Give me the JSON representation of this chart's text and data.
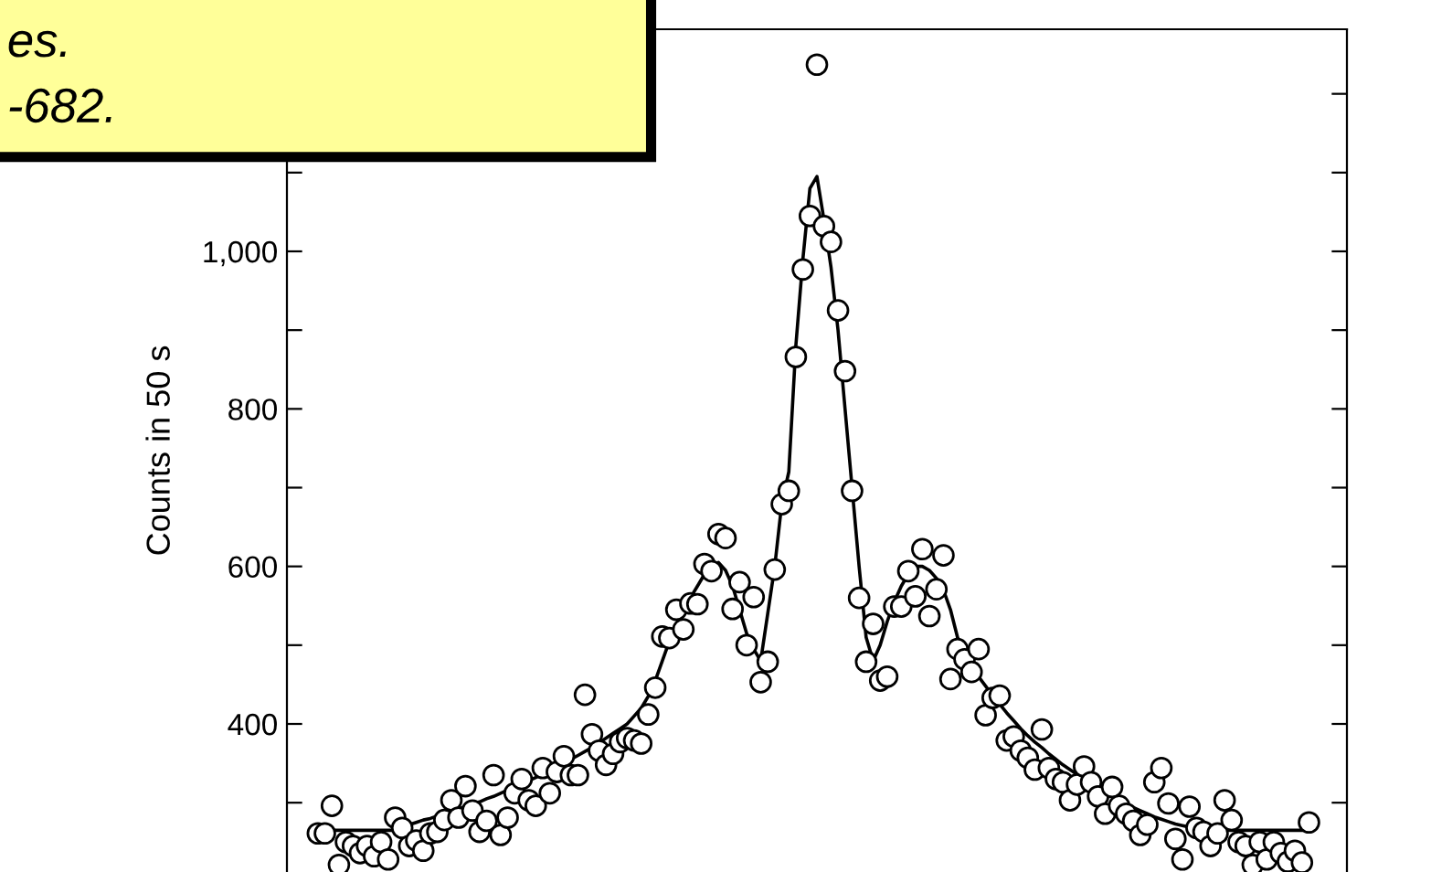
{
  "chart_data": {
    "type": "scatter",
    "ylabel": "Counts in 50 s",
    "tick_labels": "y",
    "annotations": [
      "es.",
      "-682."
    ],
    "categories": [
      null,
      null,
      null,
      null,
      null,
      null,
      null,
      null,
      null,
      null,
      null,
      null,
      null,
      null,
      null,
      null,
      null,
      null,
      null,
      null,
      null,
      null,
      null,
      null,
      null,
      null,
      null,
      null,
      null,
      null,
      null,
      null,
      null,
      null,
      null,
      null,
      null,
      null,
      null,
      null,
      null,
      null,
      null,
      null,
      null,
      null,
      null,
      null,
      null,
      null,
      null,
      null,
      null,
      null,
      null,
      null,
      null,
      null,
      null,
      null,
      null,
      null,
      null,
      null,
      null,
      null,
      null,
      null,
      null,
      null,
      null,
      null,
      null,
      null,
      null,
      null,
      null,
      null,
      null,
      null,
      null,
      null,
      null,
      null,
      null,
      null,
      null,
      null,
      null,
      null,
      null,
      null,
      null,
      null,
      null,
      null,
      null,
      null,
      null,
      null,
      null,
      null,
      null,
      null,
      null,
      null,
      null,
      null,
      null,
      null,
      null,
      null,
      null,
      null,
      null,
      null,
      null,
      null,
      null,
      null,
      null,
      null,
      null,
      null,
      null,
      null,
      null,
      null,
      null,
      null,
      null,
      null,
      null,
      null,
      null,
      null,
      null,
      null,
      null,
      null,
      null,
      null
    ],
    "ylim": [
      212,
      1282
    ],
    "yticks": [
      {
        "value": 300,
        "label": null
      },
      400,
      {
        "value": 500,
        "label": null
      },
      600,
      {
        "value": 700,
        "label": null
      },
      800,
      {
        "value": 900,
        "label": null
      },
      {
        "value": 1000,
        "label": "1,000"
      },
      {
        "value": 1100,
        "label": null
      },
      {
        "value": 1200,
        "label": null
      }
    ],
    "series": [
      {
        "marker": "circle",
        "color": "#000000",
        "values": [
          261,
          261,
          296,
          221,
          250,
          245,
          236,
          245,
          232,
          250,
          228,
          281,
          268,
          245,
          252,
          239,
          261,
          263,
          278,
          303,
          281,
          321,
          290,
          263,
          277,
          335,
          259,
          281,
          312,
          330,
          303,
          296,
          344,
          312,
          339,
          359,
          335,
          335,
          437,
          387,
          366,
          348,
          362,
          377,
          382,
          379,
          375,
          412,
          446,
          511,
          509,
          545,
          520,
          553,
          552,
          603,
          594,
          641,
          636,
          546,
          580,
          500,
          561,
          453,
          479,
          596,
          679,
          696,
          866,
          977,
          1045,
          1237,
          1032,
          1012,
          925,
          848,
          696,
          560,
          479,
          527,
          455,
          460,
          549,
          549,
          594,
          562,
          622,
          537,
          571,
          614,
          457,
          495,
          482,
          466,
          495,
          411,
          433,
          436,
          379,
          384,
          366,
          357,
          342,
          393,
          344,
          330,
          326,
          303,
          323,
          346,
          326,
          308,
          286,
          320,
          296,
          286,
          277,
          259,
          272,
          326,
          344,
          299,
          254,
          228,
          295,
          268,
          263,
          245,
          261,
          303,
          278,
          250,
          245,
          221,
          250,
          228,
          250,
          236,
          225,
          239,
          224,
          275
        ]
      },
      {
        "type": "line",
        "color": "#000000",
        "values": [
          265,
          265,
          265,
          265,
          265,
          265,
          265,
          265,
          265,
          265,
          265,
          265,
          270,
          272,
          275,
          278,
          280,
          283,
          286,
          289,
          292,
          295,
          298,
          301,
          305,
          308,
          312,
          316,
          320,
          324,
          328,
          332,
          336,
          340,
          345,
          350,
          355,
          360,
          365,
          370,
          376,
          382,
          388,
          394,
          400,
          410,
          420,
          435,
          455,
          480,
          505,
          525,
          545,
          560,
          575,
          590,
          600,
          605,
          595,
          575,
          545,
          515,
          495,
          480,
          540,
          600,
          680,
          720,
          880,
          990,
          1080,
          1095,
          1040,
          980,
          900,
          800,
          700,
          600,
          510,
          480,
          500,
          530,
          555,
          575,
          590,
          600,
          600,
          595,
          585,
          570,
          545,
          510,
          490,
          475,
          460,
          448,
          436,
          425,
          414,
          404,
          394,
          385,
          377,
          370,
          362,
          355,
          348,
          342,
          336,
          330,
          324,
          318,
          313,
          308,
          303,
          298,
          294,
          290,
          286,
          282,
          279,
          276,
          273,
          271,
          269,
          267,
          265,
          265,
          265,
          265,
          265,
          265,
          265,
          265,
          265,
          265,
          265,
          265,
          265,
          265,
          265,
          265
        ]
      }
    ]
  }
}
